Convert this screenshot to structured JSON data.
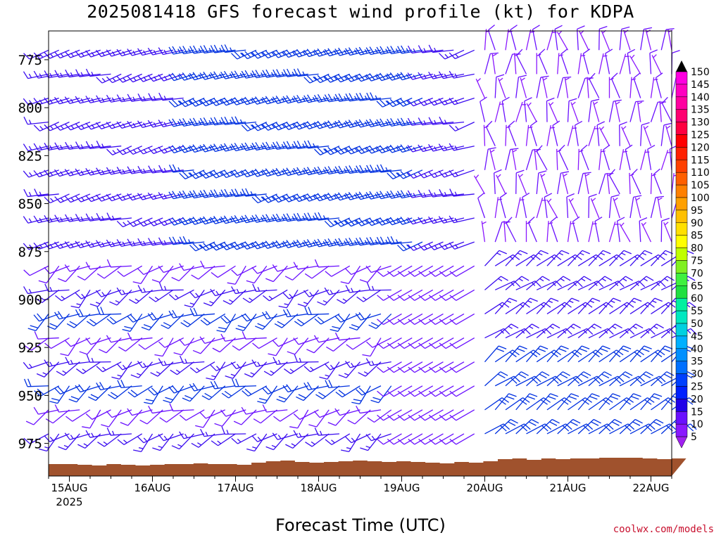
{
  "title": "2025081418 GFS forecast wind profile (kt) for KDPA",
  "xlabel": "Forecast Time (UTC)",
  "credit": "coolwx.com/models",
  "chart_data": {
    "type": "wind-barb-time-height",
    "y_ticks": [
      "775",
      "800",
      "825",
      "850",
      "875",
      "900",
      "925",
      "950",
      "975"
    ],
    "y_tick_values": [
      775,
      800,
      825,
      850,
      875,
      900,
      925,
      950,
      975
    ],
    "y_range": [
      760,
      992
    ],
    "x_ticks": [
      "15AUG",
      "16AUG",
      "17AUG",
      "18AUG",
      "19AUG",
      "20AUG",
      "21AUG",
      "22AUG"
    ],
    "x_tick_hours": [
      6,
      30,
      54,
      78,
      102,
      126,
      150,
      174
    ],
    "x_subtick": "2025",
    "x_range_hours": [
      0,
      180
    ],
    "surface_pressure_approx": 986,
    "colorbar_values": [
      "5",
      "10",
      "15",
      "20",
      "25",
      "30",
      "35",
      "40",
      "45",
      "50",
      "55",
      "60",
      "65",
      "70",
      "75",
      "80",
      "85",
      "90",
      "95",
      "100",
      "105",
      "110",
      "115",
      "120",
      "125",
      "130",
      "135",
      "140",
      "145",
      "150"
    ],
    "colorbar_colors": [
      "#8a18ff",
      "#6a10ff",
      "#2000e8",
      "#0020ff",
      "#0040ff",
      "#0070ff",
      "#0090ff",
      "#00b0ff",
      "#00d0e0",
      "#00e8c0",
      "#00f0a0",
      "#20e040",
      "#40f040",
      "#80f020",
      "#c0ff00",
      "#ffff00",
      "#ffe000",
      "#ffc000",
      "#ffa000",
      "#ff8000",
      "#ff6000",
      "#ff4000",
      "#ff2000",
      "#ff0000",
      "#ff0040",
      "#ff0070",
      "#ff00a0",
      "#ff00c0",
      "#ff00e0",
      "#ff00ff"
    ],
    "wind_speed_kt_summary": [
      {
        "period": "15AUG-17AUG, 775-875 hPa",
        "direction": "west-southwest",
        "speed_kt": "10-30"
      },
      {
        "period": "17AUG-19AUG, 775-875 hPa",
        "direction": "west-southwest",
        "speed_kt": "20-30"
      },
      {
        "period": "19AUG-20AUG, 775-925 hPa",
        "direction": "west",
        "speed_kt": "5-15"
      },
      {
        "period": "20AUG-22AUG, 900-975 hPa",
        "direction": "northeast",
        "speed_kt": "10-25"
      },
      {
        "period": "20AUG-22AUG, 775-875 hPa",
        "direction": "north to northwest",
        "speed_kt": "5-10"
      }
    ]
  }
}
